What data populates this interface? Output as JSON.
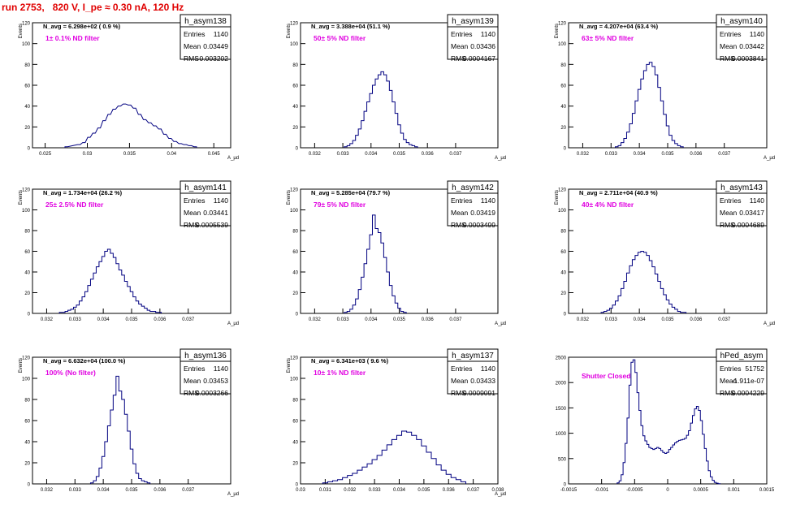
{
  "page_title": "run 2753,   820 V, I_pe ≈ 0.30 nA, 120 Hz",
  "colors": {
    "histogram": "#000080",
    "annotation": "#e000e0",
    "title": "#e00000",
    "frame": "#000000"
  },
  "chart_data": [
    {
      "type": "histogram",
      "name": "h_asym138",
      "stats": {
        "Entries": "1140",
        "Mean": "0.03449",
        "RMS": "0.003202"
      },
      "navg_label": "N_avg = 6.298e+02 ( 0.9 %)",
      "filter_label": "1± 0.1% ND filter",
      "ylabel": "Events",
      "xlabel": "A_μd",
      "xlim": [
        0.0235,
        0.047
      ],
      "ylim": [
        0,
        120
      ],
      "xticks": [
        "0.025",
        "0.03",
        "0.035",
        "0.04",
        "0.045"
      ],
      "xtick_values": [
        0.025,
        0.03,
        0.035,
        0.04,
        0.045
      ],
      "yticks": [
        "0",
        "20",
        "40",
        "60",
        "80",
        "100",
        "120"
      ],
      "ytick_values": [
        0,
        20,
        40,
        60,
        80,
        100,
        120
      ],
      "bin_width": 0.0003,
      "x": [
        0.0275,
        0.029,
        0.0296,
        0.0302,
        0.0308,
        0.0314,
        0.032,
        0.0326,
        0.0332,
        0.0338,
        0.0344,
        0.035,
        0.0356,
        0.0362,
        0.0368,
        0.0374,
        0.038,
        0.0386,
        0.0392,
        0.0398,
        0.0404,
        0.041,
        0.0416,
        0.0422,
        0.0428
      ],
      "values": [
        1,
        3,
        5,
        10,
        14,
        19,
        26,
        32,
        37,
        40,
        42,
        41,
        38,
        32,
        27,
        24,
        21,
        18,
        13,
        9,
        6,
        4,
        3,
        2,
        1
      ]
    },
    {
      "type": "histogram",
      "name": "h_asym139",
      "stats": {
        "Entries": "1140",
        "Mean": "0.03436",
        "RMS": "0.0004167"
      },
      "navg_label": "N_avg = 3.388e+04 (51.1 %)",
      "filter_label": "50± 5% ND filter",
      "ylabel": "Events",
      "xlabel": "A_μd",
      "xlim": [
        0.0315,
        0.0385
      ],
      "ylim": [
        0,
        120
      ],
      "xticks": [
        "0.032",
        "0.033",
        "0.034",
        "0.035",
        "0.036",
        "0.037"
      ],
      "xtick_values": [
        0.032,
        0.033,
        0.034,
        0.035,
        0.036,
        0.037
      ],
      "yticks": [
        "0",
        "20",
        "40",
        "60",
        "80",
        "100",
        "120"
      ],
      "ytick_values": [
        0,
        20,
        40,
        60,
        80,
        100,
        120
      ],
      "bin_width": 0.0001,
      "x": [
        0.0331,
        0.0332,
        0.0333,
        0.0334,
        0.0335,
        0.0336,
        0.0337,
        0.0338,
        0.0339,
        0.034,
        0.0341,
        0.0342,
        0.0343,
        0.0344,
        0.0345,
        0.0346,
        0.0347,
        0.0348,
        0.0349,
        0.035,
        0.0351,
        0.0352,
        0.0353,
        0.0354,
        0.0355,
        0.0356
      ],
      "values": [
        1,
        2,
        4,
        7,
        12,
        18,
        26,
        35,
        44,
        52,
        60,
        66,
        70,
        73,
        70,
        64,
        55,
        44,
        33,
        22,
        14,
        8,
        5,
        3,
        2,
        1
      ]
    },
    {
      "type": "histogram",
      "name": "h_asym140",
      "stats": {
        "Entries": "1140",
        "Mean": "0.03442",
        "RMS": "0.0003841"
      },
      "navg_label": "N_avg = 4.207e+04 (63.4 %)",
      "filter_label": "63± 5% ND filter",
      "ylabel": "Events",
      "xlabel": "A_μd",
      "xlim": [
        0.0315,
        0.0385
      ],
      "ylim": [
        0,
        120
      ],
      "xticks": [
        "0.032",
        "0.033",
        "0.034",
        "0.035",
        "0.036",
        "0.037"
      ],
      "xtick_values": [
        0.032,
        0.033,
        0.034,
        0.035,
        0.036,
        0.037
      ],
      "yticks": [
        "0",
        "20",
        "40",
        "60",
        "80",
        "100",
        "120"
      ],
      "ytick_values": [
        0,
        20,
        40,
        60,
        80,
        100,
        120
      ],
      "bin_width": 0.0001,
      "x": [
        0.0332,
        0.0333,
        0.0334,
        0.0335,
        0.0336,
        0.0337,
        0.0338,
        0.0339,
        0.034,
        0.0341,
        0.0342,
        0.0343,
        0.0344,
        0.0345,
        0.0346,
        0.0347,
        0.0348,
        0.0349,
        0.035,
        0.0351,
        0.0352,
        0.0353,
        0.0354,
        0.0355
      ],
      "values": [
        1,
        2,
        5,
        9,
        15,
        23,
        33,
        45,
        56,
        66,
        74,
        80,
        82,
        78,
        70,
        58,
        45,
        32,
        21,
        12,
        7,
        4,
        2,
        1
      ]
    },
    {
      "type": "histogram",
      "name": "h_asym141",
      "stats": {
        "Entries": "1140",
        "Mean": "0.03441",
        "RMS": "0.0005539"
      },
      "navg_label": "N_avg = 1.734e+04 (26.2 %)",
      "filter_label": "25± 2.5% ND filter",
      "ylabel": "Events",
      "xlabel": "A_μd",
      "xlim": [
        0.0315,
        0.0385
      ],
      "ylim": [
        0,
        120
      ],
      "xticks": [
        "0.032",
        "0.033",
        "0.034",
        "0.035",
        "0.036",
        "0.037"
      ],
      "xtick_values": [
        0.032,
        0.033,
        0.034,
        0.035,
        0.036,
        0.037
      ],
      "yticks": [
        "0",
        "20",
        "40",
        "60",
        "80",
        "100",
        "120"
      ],
      "ytick_values": [
        0,
        20,
        40,
        60,
        80,
        100,
        120
      ],
      "bin_width": 0.0001,
      "x": [
        0.0325,
        0.0326,
        0.0327,
        0.0328,
        0.0329,
        0.033,
        0.0331,
        0.0332,
        0.0333,
        0.0334,
        0.0335,
        0.0336,
        0.0337,
        0.0338,
        0.0339,
        0.034,
        0.0341,
        0.0342,
        0.0343,
        0.0344,
        0.0345,
        0.0346,
        0.0347,
        0.0348,
        0.0349,
        0.035,
        0.0351,
        0.0352,
        0.0353,
        0.0354,
        0.0355,
        0.0356,
        0.0357,
        0.0358,
        0.0359,
        0.036
      ],
      "values": [
        1,
        1,
        2,
        3,
        4,
        6,
        8,
        12,
        16,
        21,
        27,
        33,
        39,
        45,
        50,
        55,
        60,
        62,
        58,
        54,
        48,
        42,
        37,
        31,
        26,
        21,
        16,
        12,
        9,
        7,
        5,
        3,
        2,
        2,
        1,
        1
      ]
    },
    {
      "type": "histogram",
      "name": "h_asym142",
      "stats": {
        "Entries": "1140",
        "Mean": "0.03419",
        "RMS": "0.0003499"
      },
      "navg_label": "N_avg = 5.285e+04 (79.7 %)",
      "filter_label": "79± 5% ND filter",
      "ylabel": "Events",
      "xlabel": "A_μd",
      "xlim": [
        0.0315,
        0.0385
      ],
      "ylim": [
        0,
        120
      ],
      "xticks": [
        "0.032",
        "0.033",
        "0.034",
        "0.035",
        "0.036",
        "0.037"
      ],
      "xtick_values": [
        0.032,
        0.033,
        0.034,
        0.035,
        0.036,
        0.037
      ],
      "yticks": [
        "0",
        "20",
        "40",
        "60",
        "80",
        "100",
        "120"
      ],
      "ytick_values": [
        0,
        20,
        40,
        60,
        80,
        100,
        120
      ],
      "bin_width": 0.0001,
      "x": [
        0.0331,
        0.0332,
        0.0333,
        0.0334,
        0.0335,
        0.0336,
        0.0337,
        0.0338,
        0.0339,
        0.034,
        0.0341,
        0.0342,
        0.0343,
        0.0344,
        0.0345,
        0.0346,
        0.0347,
        0.0348,
        0.0349,
        0.035,
        0.0351,
        0.0352
      ],
      "values": [
        1,
        2,
        4,
        8,
        14,
        23,
        35,
        48,
        62,
        76,
        95,
        82,
        78,
        68,
        54,
        40,
        27,
        17,
        10,
        5,
        2,
        1
      ]
    },
    {
      "type": "histogram",
      "name": "h_asym143",
      "stats": {
        "Entries": "1140",
        "Mean": "0.03417",
        "RMS": "0.0004689"
      },
      "navg_label": "N_avg = 2.711e+04 (40.9 %)",
      "filter_label": "40± 4% ND filter",
      "ylabel": "Events",
      "xlabel": "A_μd",
      "xlim": [
        0.0315,
        0.0385
      ],
      "ylim": [
        0,
        120
      ],
      "xticks": [
        "0.032",
        "0.033",
        "0.034",
        "0.035",
        "0.036",
        "0.037"
      ],
      "xtick_values": [
        0.032,
        0.033,
        0.034,
        0.035,
        0.036,
        0.037
      ],
      "yticks": [
        "0",
        "20",
        "40",
        "60",
        "80",
        "100",
        "120"
      ],
      "ytick_values": [
        0,
        20,
        40,
        60,
        80,
        100,
        120
      ],
      "bin_width": 0.0001,
      "x": [
        0.0327,
        0.0328,
        0.0329,
        0.033,
        0.0331,
        0.0332,
        0.0333,
        0.0334,
        0.0335,
        0.0336,
        0.0337,
        0.0338,
        0.0339,
        0.034,
        0.0341,
        0.0342,
        0.0343,
        0.0344,
        0.0345,
        0.0346,
        0.0347,
        0.0348,
        0.0349,
        0.035,
        0.0351,
        0.0352,
        0.0353,
        0.0354,
        0.0355,
        0.0356
      ],
      "values": [
        1,
        2,
        3,
        5,
        8,
        12,
        17,
        24,
        31,
        39,
        46,
        52,
        56,
        59,
        60,
        59,
        56,
        51,
        45,
        38,
        31,
        24,
        18,
        13,
        9,
        6,
        4,
        2,
        1,
        1
      ]
    },
    {
      "type": "histogram",
      "name": "h_asym136",
      "stats": {
        "Entries": "1140",
        "Mean": "0.03453",
        "RMS": "0.0003266"
      },
      "navg_label": "N_avg = 6.632e+04 (100.0 %)",
      "filter_label": "100% (No filter)",
      "ylabel": "Events",
      "xlabel": "A_μd",
      "xlim": [
        0.0315,
        0.0385
      ],
      "ylim": [
        0,
        120
      ],
      "xticks": [
        "0.032",
        "0.033",
        "0.034",
        "0.035",
        "0.036",
        "0.037"
      ],
      "xtick_values": [
        0.032,
        0.033,
        0.034,
        0.035,
        0.036,
        0.037
      ],
      "yticks": [
        "0",
        "20",
        "40",
        "60",
        "80",
        "100",
        "120"
      ],
      "ytick_values": [
        0,
        20,
        40,
        60,
        80,
        100,
        120
      ],
      "bin_width": 0.0001,
      "x": [
        0.0336,
        0.0337,
        0.0338,
        0.0339,
        0.034,
        0.0341,
        0.0342,
        0.0343,
        0.0344,
        0.0345,
        0.0346,
        0.0347,
        0.0348,
        0.0349,
        0.035,
        0.0351,
        0.0352,
        0.0353,
        0.0354,
        0.0355,
        0.0356
      ],
      "values": [
        1,
        3,
        7,
        15,
        26,
        40,
        55,
        70,
        84,
        102,
        88,
        80,
        66,
        50,
        33,
        19,
        10,
        5,
        3,
        2,
        1
      ]
    },
    {
      "type": "histogram",
      "name": "h_asym137",
      "stats": {
        "Entries": "1140",
        "Mean": "0.03433",
        "RMS": "0.0009091"
      },
      "navg_label": "N_avg = 6.341e+03 ( 9.6 %)",
      "filter_label": "10± 1% ND filter",
      "ylabel": "Events",
      "xlabel": "A_μd",
      "xlim": [
        0.03,
        0.038
      ],
      "ylim": [
        0,
        120
      ],
      "xticks": [
        "0.03",
        "0.031",
        "0.032",
        "0.033",
        "0.034",
        "0.035",
        "0.036",
        "0.037",
        "0.038"
      ],
      "xtick_values": [
        0.03,
        0.031,
        0.032,
        0.033,
        0.034,
        0.035,
        0.036,
        0.037,
        0.038
      ],
      "yticks": [
        "0",
        "20",
        "40",
        "60",
        "80",
        "100",
        "120"
      ],
      "ytick_values": [
        0,
        20,
        40,
        60,
        80,
        100,
        120
      ],
      "bin_width": 0.0002,
      "x": [
        0.031,
        0.0312,
        0.0314,
        0.0316,
        0.0318,
        0.032,
        0.0322,
        0.0324,
        0.0326,
        0.0328,
        0.033,
        0.0332,
        0.0334,
        0.0336,
        0.0338,
        0.034,
        0.0342,
        0.0344,
        0.0346,
        0.0348,
        0.035,
        0.0352,
        0.0354,
        0.0356,
        0.0358,
        0.036,
        0.0362,
        0.0364,
        0.0366
      ],
      "values": [
        1,
        2,
        3,
        4,
        6,
        8,
        10,
        13,
        16,
        19,
        23,
        27,
        32,
        37,
        42,
        46,
        50,
        49,
        46,
        42,
        36,
        30,
        24,
        18,
        13,
        9,
        6,
        4,
        2
      ]
    },
    {
      "type": "histogram",
      "name": "hPed_asym",
      "stats": {
        "Entries": "51752",
        "Mean": "-1.911e-07",
        "RMS": "0.0004229"
      },
      "navg_label": "",
      "filter_label": "Shutter Closed",
      "ylabel": "",
      "xlabel": "",
      "xlim": [
        -0.0015,
        0.0015
      ],
      "ylim": [
        0,
        2500
      ],
      "xticks": [
        "-0.0015",
        "-0.001",
        "-0.0005",
        "0",
        "0.0005",
        "0.001",
        "0.0015"
      ],
      "xtick_values": [
        -0.0015,
        -0.001,
        -0.0005,
        0,
        0.0005,
        0.001,
        0.0015
      ],
      "yticks": [
        "0",
        "500",
        "1000",
        "1500",
        "2000",
        "2500"
      ],
      "ytick_values": [
        0,
        500,
        1000,
        1500,
        2000,
        2500
      ],
      "bin_width": 3e-05,
      "x": [
        -0.00075,
        -0.00072,
        -0.00069,
        -0.00066,
        -0.00063,
        -0.0006,
        -0.00057,
        -0.00054,
        -0.00051,
        -0.00048,
        -0.00045,
        -0.00042,
        -0.00039,
        -0.00036,
        -0.00033,
        -0.0003,
        -0.00027,
        -0.00024,
        -0.00021,
        -0.00018,
        -0.00015,
        -0.00012,
        -9e-05,
        -6e-05,
        -3e-05,
        0.0,
        3e-05,
        6e-05,
        9e-05,
        0.00012,
        0.00015,
        0.00018,
        0.00021,
        0.00024,
        0.00027,
        0.0003,
        0.00033,
        0.00036,
        0.00039,
        0.00042,
        0.00045,
        0.00048,
        0.00051,
        0.00054,
        0.00057,
        0.0006,
        0.00063,
        0.00066,
        0.00069,
        0.00072,
        0.00075,
        0.00078
      ],
      "values": [
        20,
        60,
        180,
        420,
        800,
        1300,
        1950,
        2400,
        2450,
        2200,
        1800,
        1450,
        1150,
        950,
        850,
        780,
        720,
        700,
        680,
        700,
        720,
        700,
        660,
        620,
        600,
        620,
        680,
        720,
        770,
        810,
        840,
        860,
        870,
        880,
        900,
        960,
        1050,
        1200,
        1350,
        1480,
        1530,
        1450,
        1250,
        980,
        700,
        450,
        260,
        140,
        70,
        30,
        15,
        5
      ]
    }
  ]
}
